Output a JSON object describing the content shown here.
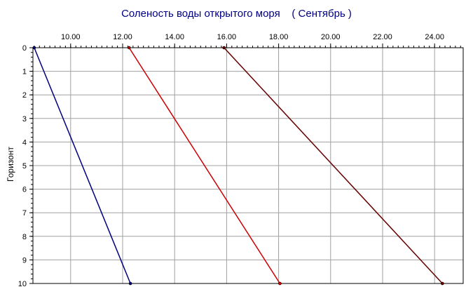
{
  "chart_data": {
    "type": "line",
    "title": "Соленость воды открытого моря    ( Сентябрь )",
    "xlabel": "",
    "ylabel": "Горизонт",
    "x_ticks": [
      "10.00",
      "12.00",
      "14.00",
      "16.00",
      "18.00",
      "20.00",
      "22.00",
      "24.00"
    ],
    "y_ticks": [
      "0",
      "1",
      "2",
      "3",
      "4",
      "5",
      "6",
      "7",
      "8",
      "9",
      "10"
    ],
    "xlim": [
      8.55,
      25.1
    ],
    "ylim": [
      0,
      10
    ],
    "y_axis_inverted": true,
    "x_axis_position": "top",
    "grid": true,
    "legend": "none",
    "series": [
      {
        "color": "#000080",
        "points": [
          [
            8.6,
            0
          ],
          [
            12.3,
            10
          ]
        ]
      },
      {
        "color": "#cc0000",
        "points": [
          [
            12.25,
            0
          ],
          [
            18.05,
            10
          ]
        ]
      },
      {
        "color": "#660000",
        "points": [
          [
            15.9,
            0
          ],
          [
            24.3,
            10
          ]
        ]
      }
    ]
  }
}
